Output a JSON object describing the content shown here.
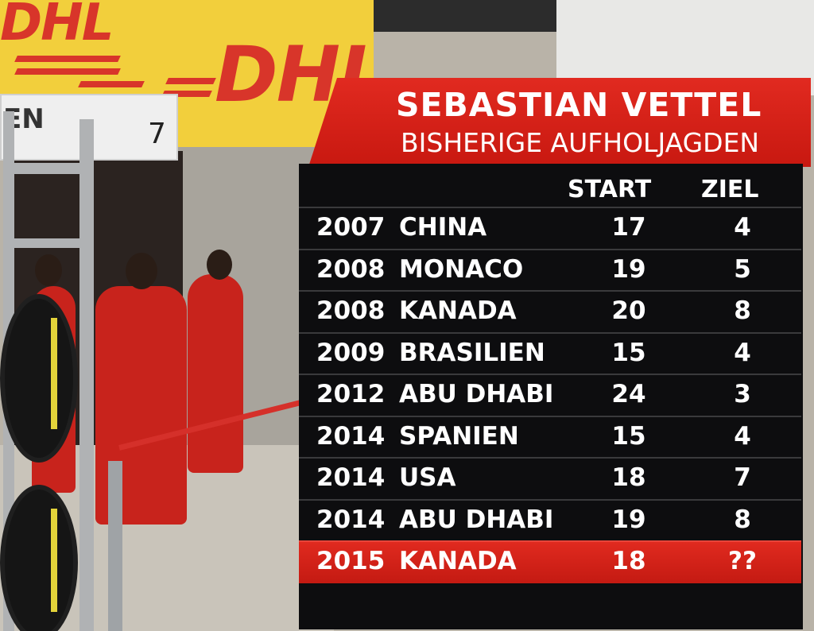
{
  "scene": {
    "banner_text": "DHL",
    "sign_text": "EN",
    "sign_number": "7"
  },
  "graphic": {
    "title": "SEBASTIAN VETTEL",
    "subtitle": "BISHERIGE AUFHOLJAGDEN",
    "columns": {
      "start": "START",
      "ziel": "ZIEL"
    },
    "rows": [
      {
        "year": "2007",
        "race": "CHINA",
        "start": "17",
        "ziel": "4"
      },
      {
        "year": "2008",
        "race": "MONACO",
        "start": "19",
        "ziel": "5"
      },
      {
        "year": "2008",
        "race": "KANADA",
        "start": "20",
        "ziel": "8"
      },
      {
        "year": "2009",
        "race": "BRASILIEN",
        "start": "15",
        "ziel": "4"
      },
      {
        "year": "2012",
        "race": "ABU DHABI",
        "start": "24",
        "ziel": "3"
      },
      {
        "year": "2014",
        "race": "SPANIEN",
        "start": "15",
        "ziel": "4"
      },
      {
        "year": "2014",
        "race": "USA",
        "start": "18",
        "ziel": "7"
      },
      {
        "year": "2014",
        "race": "ABU DHABI",
        "start": "19",
        "ziel": "8"
      },
      {
        "year": "2015",
        "race": "KANADA",
        "start": "18",
        "ziel": "??"
      }
    ],
    "highlight_color": "#d8221a"
  }
}
